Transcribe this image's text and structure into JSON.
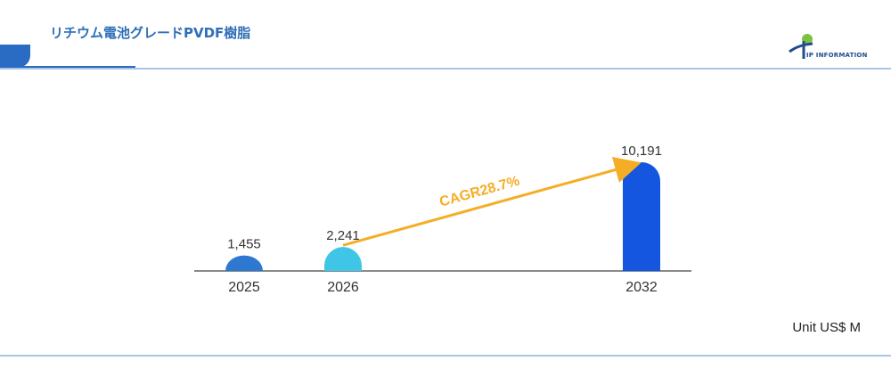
{
  "header": {
    "title": "リチウム電池グレードPVDF樹脂",
    "logo_text": "IP INFORMATION"
  },
  "unit_label": "Unit US$ M",
  "colors": {
    "accent": "#2a6bc4",
    "rule": "#a9c3e4",
    "bar_2025": "#2f78d0",
    "bar_2026": "#3fc6e6",
    "bar_2032": "#1456df",
    "arrow": "#f6ad26"
  },
  "chart_data": {
    "type": "bar",
    "categories": [
      "2025",
      "2026",
      "2032"
    ],
    "values": [
      1455,
      2241,
      10191
    ],
    "value_labels": [
      "1,455",
      "2,241",
      "10,191"
    ],
    "annotation": "CAGR28.7%",
    "title": "",
    "xlabel": "",
    "ylabel": "",
    "ylim": [
      0,
      10191
    ],
    "grid": false,
    "legend": "none"
  }
}
